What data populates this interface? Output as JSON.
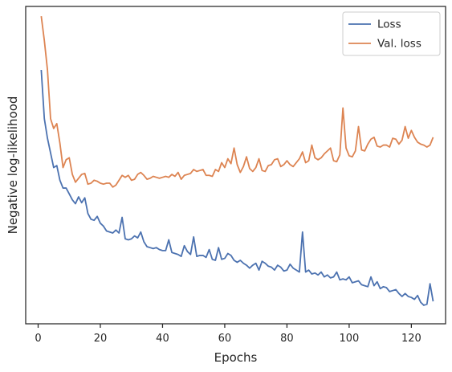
{
  "chart_data": {
    "type": "line",
    "xlabel": "Epochs",
    "ylabel": "Negative log-likelihood",
    "xlim": [
      -4,
      131
    ],
    "ylim": [
      -1.5,
      31
    ],
    "xticks": [
      0,
      20,
      40,
      60,
      80,
      100,
      120
    ],
    "yticks_labeled": false,
    "grid": false,
    "legend": "top-right",
    "x": [
      1,
      2,
      3,
      4,
      5,
      6,
      7,
      8,
      9,
      10,
      11,
      12,
      13,
      14,
      15,
      16,
      17,
      18,
      19,
      20,
      21,
      22,
      23,
      24,
      25,
      26,
      27,
      28,
      29,
      30,
      31,
      32,
      33,
      34,
      35,
      36,
      37,
      38,
      39,
      40,
      41,
      42,
      43,
      44,
      45,
      46,
      47,
      48,
      49,
      50,
      51,
      52,
      53,
      54,
      55,
      56,
      57,
      58,
      59,
      60,
      61,
      62,
      63,
      64,
      65,
      66,
      67,
      68,
      69,
      70,
      71,
      72,
      73,
      74,
      75,
      76,
      77,
      78,
      79,
      80,
      81,
      82,
      83,
      84,
      85,
      86,
      87,
      88,
      89,
      90,
      91,
      92,
      93,
      94,
      95,
      96,
      97,
      98,
      99,
      100,
      101,
      102,
      103,
      104,
      105,
      106,
      107,
      108,
      109,
      110,
      111,
      112,
      113,
      114,
      115,
      116,
      117,
      118,
      119,
      120,
      121,
      122,
      123,
      124,
      125,
      126,
      127
    ],
    "series": [
      {
        "name": "Loss",
        "color": "#4c72b0",
        "values": [
          24.5,
          19.5,
          17.5,
          16,
          14.5,
          14.7,
          13.2,
          12.4,
          12.4,
          11.8,
          11.2,
          10.8,
          11.5,
          10.9,
          11.4,
          9.8,
          9.2,
          9.1,
          9.5,
          8.8,
          8.5,
          8.0,
          7.9,
          7.8,
          8.1,
          7.8,
          9.4,
          7.2,
          7.1,
          7.2,
          7.5,
          7.3,
          7.9,
          6.9,
          6.4,
          6.3,
          6.2,
          6.3,
          6.1,
          6.0,
          6.0,
          7.1,
          5.8,
          5.7,
          5.6,
          5.4,
          6.5,
          5.9,
          5.6,
          7.4,
          5.4,
          5.5,
          5.5,
          5.3,
          6.1,
          5.1,
          5.0,
          6.3,
          5.1,
          5.2,
          5.7,
          5.5,
          5.0,
          4.8,
          5.0,
          4.7,
          4.5,
          4.2,
          4.5,
          4.7,
          4.0,
          4.9,
          4.7,
          4.4,
          4.3,
          4.0,
          4.5,
          4.3,
          3.9,
          4.0,
          4.6,
          4.2,
          4.0,
          3.8,
          7.9,
          3.8,
          4.0,
          3.6,
          3.7,
          3.5,
          3.8,
          3.3,
          3.5,
          3.2,
          3.3,
          3.8,
          3.0,
          3.1,
          3.0,
          3.3,
          2.7,
          2.8,
          2.9,
          2.5,
          2.4,
          2.3,
          3.3,
          2.4,
          2.8,
          2.1,
          2.3,
          2.2,
          1.8,
          1.9,
          2.0,
          1.6,
          1.3,
          1.6,
          1.3,
          1.2,
          1.0,
          1.4,
          0.7,
          0.4,
          0.5,
          2.6,
          0.8
        ]
      },
      {
        "name": "Val. loss",
        "color": "#dd8452",
        "values": [
          30,
          27.5,
          24.5,
          19.5,
          18.5,
          19,
          17,
          14.5,
          15.3,
          15.5,
          13.8,
          13,
          13.4,
          13.8,
          13.9,
          12.8,
          12.9,
          13.2,
          13.1,
          12.9,
          12.8,
          12.9,
          12.9,
          12.5,
          12.7,
          13.2,
          13.7,
          13.5,
          13.7,
          13.2,
          13.3,
          13.8,
          14.0,
          13.7,
          13.3,
          13.4,
          13.6,
          13.5,
          13.4,
          13.5,
          13.6,
          13.5,
          13.8,
          13.6,
          14.0,
          13.3,
          13.7,
          13.8,
          13.9,
          14.3,
          14.1,
          14.2,
          14.3,
          13.7,
          13.7,
          13.6,
          14.3,
          14.1,
          15.0,
          14.5,
          15.4,
          14.9,
          16.5,
          14.8,
          14.0,
          14.6,
          15.6,
          14.4,
          14.1,
          14.5,
          15.4,
          14.2,
          14.1,
          14.7,
          14.8,
          15.3,
          15.4,
          14.6,
          14.8,
          15.2,
          14.8,
          14.6,
          15.0,
          15.4,
          16.1,
          15.0,
          15.2,
          16.8,
          15.5,
          15.3,
          15.5,
          15.9,
          16.2,
          16.5,
          15.2,
          15.1,
          15.8,
          20.6,
          16.5,
          15.7,
          15.6,
          16.2,
          18.7,
          16.3,
          16.2,
          16.9,
          17.4,
          17.6,
          16.7,
          16.6,
          16.8,
          16.8,
          16.6,
          17.5,
          17.4,
          16.9,
          17.3,
          18.7,
          17.5,
          18.3,
          17.6,
          17.1,
          16.9,
          16.8,
          16.6,
          16.8,
          17.6
        ]
      }
    ]
  }
}
